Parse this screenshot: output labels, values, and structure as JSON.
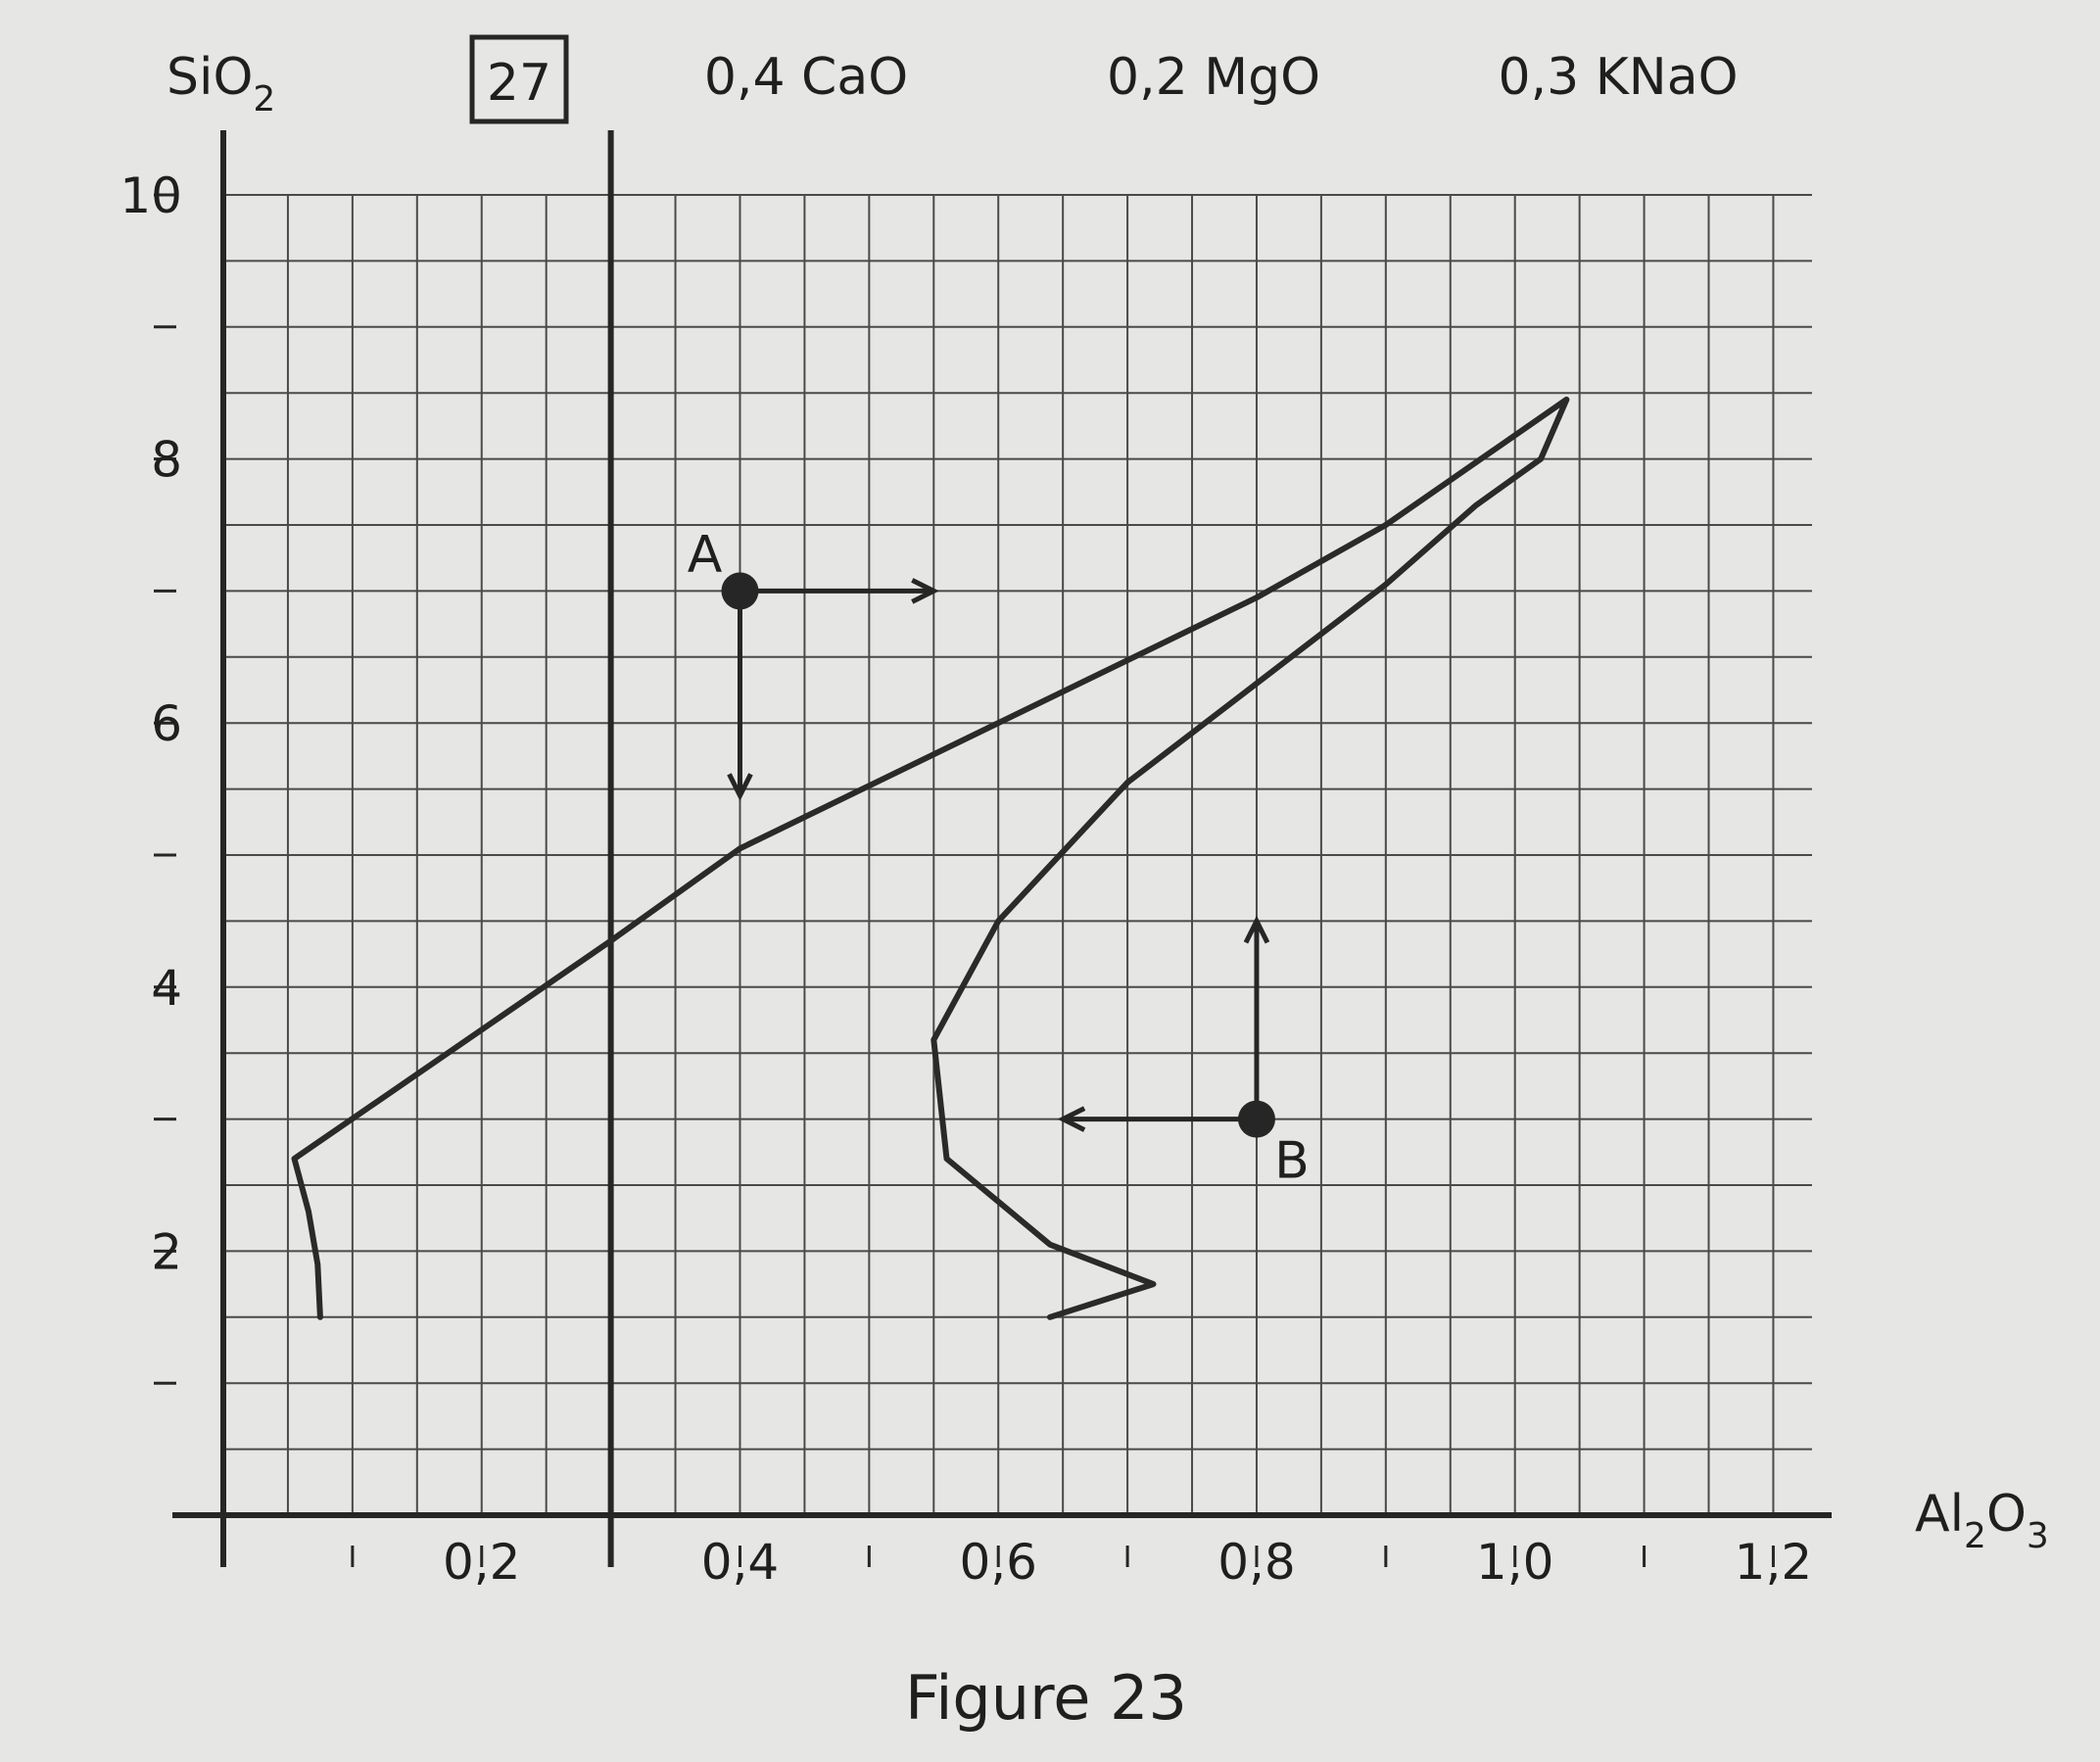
{
  "chart_data": {
    "type": "line",
    "caption": "Figure 23",
    "y_axis_label": "SiO",
    "y_axis_label_sub": "2",
    "x_axis_label": "Al",
    "x_axis_label_sub1": "2",
    "x_axis_label_mid": "O",
    "x_axis_label_sub2": "3",
    "boxed_number": "27",
    "header_labels": [
      "0,4 CaO",
      "0,2 MgO",
      "0,3 KNaO"
    ],
    "xlim": [
      0,
      1.2
    ],
    "ylim": [
      0,
      10
    ],
    "x_ticks_labeled": [
      "0,2",
      "0,4",
      "0,6",
      "0,8",
      "1,0",
      "1,2"
    ],
    "y_ticks_labeled": [
      "2",
      "4",
      "6",
      "8",
      "10"
    ],
    "grid": true,
    "vertical_reference_line_x": 0.3,
    "series": [
      {
        "points": [
          [
            0.075,
            1.5
          ],
          [
            0.073,
            1.9
          ],
          [
            0.066,
            2.3
          ],
          [
            0.055,
            2.7
          ],
          [
            0.3,
            4.35
          ],
          [
            0.4,
            5.05
          ],
          [
            0.6,
            6.0
          ],
          [
            0.8,
            6.95
          ],
          [
            0.9,
            7.5
          ],
          [
            1.04,
            8.45
          ],
          [
            1.02,
            8.0
          ],
          [
            0.97,
            7.65
          ],
          [
            0.9,
            7.05
          ],
          [
            0.8,
            6.3
          ],
          [
            0.7,
            5.55
          ],
          [
            0.6,
            4.5
          ],
          [
            0.55,
            3.6
          ],
          [
            0.56,
            2.7
          ],
          [
            0.64,
            2.05
          ],
          [
            0.72,
            1.75
          ],
          [
            0.64,
            1.5
          ]
        ]
      }
    ],
    "annotations": [
      {
        "label": "A",
        "point": [
          0.4,
          7.0
        ],
        "arrow_right_to": [
          0.55,
          7.0
        ],
        "arrow_down_to": [
          0.4,
          5.45
        ]
      },
      {
        "label": "B",
        "point": [
          0.8,
          3.0
        ],
        "arrow_up_to": [
          0.8,
          4.5
        ],
        "arrow_left_to": [
          0.65,
          3.0
        ]
      }
    ]
  }
}
